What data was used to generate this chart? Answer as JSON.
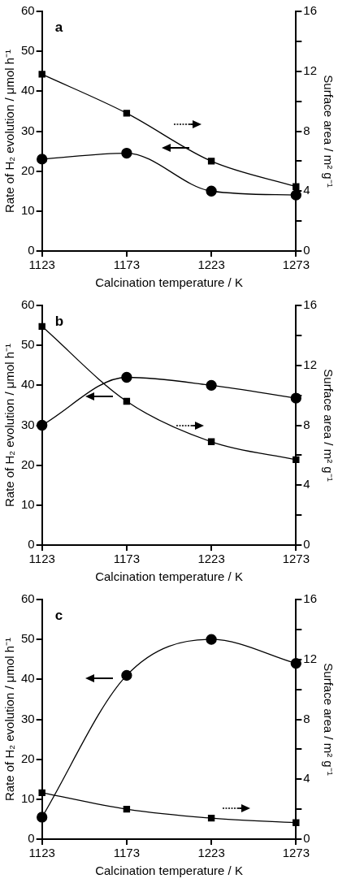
{
  "chart_data": [
    {
      "type": "line",
      "title": "a",
      "xlabel": "Calcination temperature / K",
      "ylabel": "Rate of H₂ evolution / μmol h⁻¹",
      "y2label": "Surface area / m² g⁻¹",
      "x": [
        1123,
        1173,
        1223,
        1273
      ],
      "xlim": [
        1123,
        1273
      ],
      "xticks": [
        1123,
        1173,
        1223,
        1273
      ],
      "ylim": [
        0,
        60
      ],
      "yticks": [
        0,
        10,
        20,
        30,
        40,
        50,
        60
      ],
      "y2lim": [
        0,
        16
      ],
      "y2ticks": [
        0,
        {
          "value": 2,
          "label": null
        },
        4,
        {
          "value": 6,
          "label": null
        },
        8,
        {
          "value": 10,
          "label": null
        },
        12,
        {
          "value": 14,
          "label": null
        },
        16
      ],
      "legend": false,
      "grid": false,
      "line_style": "solid",
      "series": [
        {
          "color": "#000000",
          "marker": "circle",
          "axis": "y",
          "values": [
            23,
            24.5,
            15,
            14
          ]
        },
        {
          "color": "#000000",
          "marker": "square",
          "axis": "y2",
          "values": [
            11.8,
            9.2,
            6.0,
            4.3
          ]
        }
      ]
    },
    {
      "type": "line",
      "title": "b",
      "xlabel": "Calcination temperature / K",
      "ylabel": "Rate of H₂ evolution / μmol h⁻¹",
      "y2label": "Surface area / m² g⁻¹",
      "x": [
        1123,
        1173,
        1223,
        1273
      ],
      "xlim": [
        1123,
        1273
      ],
      "xticks": [
        1123,
        1173,
        1223,
        1273
      ],
      "ylim": [
        0,
        60
      ],
      "yticks": [
        0,
        10,
        20,
        30,
        40,
        50,
        60
      ],
      "y2lim": [
        0,
        16
      ],
      "y2ticks": [
        0,
        {
          "value": 2,
          "label": null
        },
        4,
        {
          "value": 6,
          "label": null
        },
        8,
        {
          "value": 10,
          "label": null
        },
        12,
        {
          "value": 14,
          "label": null
        },
        16
      ],
      "legend": false,
      "grid": false,
      "line_style": "solid",
      "series": [
        {
          "color": "#000000",
          "marker": "circle",
          "axis": "y",
          "values": [
            30,
            42,
            40,
            36.8
          ]
        },
        {
          "color": "#000000",
          "marker": "square",
          "axis": "y2",
          "values": [
            14.6,
            9.6,
            6.9,
            5.7
          ]
        }
      ]
    },
    {
      "type": "line",
      "title": "c",
      "xlabel": "Calcination temperature / K",
      "ylabel": "Rate of H₂ evolution / μmol h⁻¹",
      "y2label": "Surface area / m² g⁻¹",
      "x": [
        1123,
        1173,
        1223,
        1273
      ],
      "xlim": [
        1123,
        1273
      ],
      "xticks": [
        1123,
        1173,
        1223,
        1273
      ],
      "ylim": [
        0,
        60
      ],
      "yticks": [
        0,
        10,
        20,
        30,
        40,
        50,
        60
      ],
      "y2lim": [
        0,
        16
      ],
      "y2ticks": [
        0,
        {
          "value": 2,
          "label": null
        },
        4,
        {
          "value": 6,
          "label": null
        },
        8,
        {
          "value": 10,
          "label": null
        },
        12,
        {
          "value": 14,
          "label": null
        },
        16
      ],
      "legend": false,
      "grid": false,
      "line_style": "solid",
      "series": [
        {
          "color": "#000000",
          "marker": "circle",
          "axis": "y",
          "values": [
            5.5,
            41,
            50,
            44
          ]
        },
        {
          "color": "#000000",
          "marker": "square",
          "axis": "y2",
          "values": [
            3.1,
            2.0,
            1.4,
            1.1
          ]
        }
      ]
    }
  ]
}
